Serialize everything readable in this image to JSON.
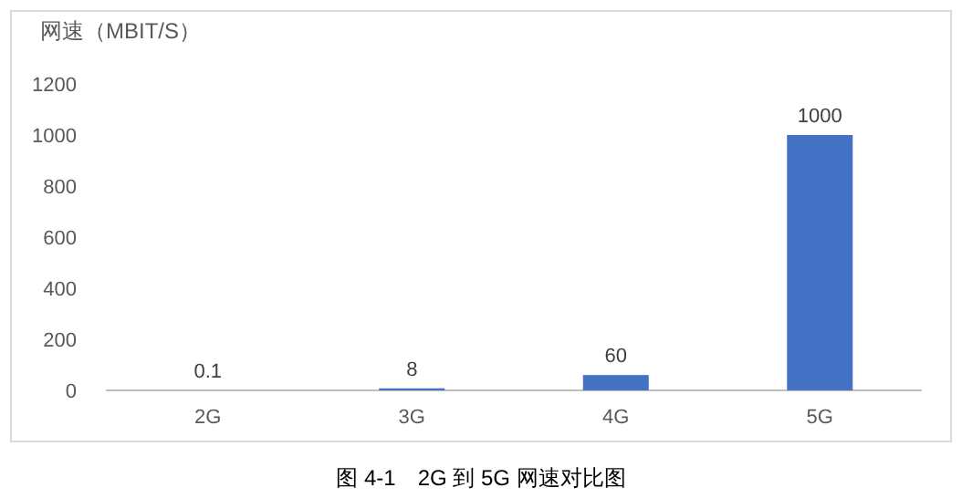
{
  "chart_data": {
    "type": "bar",
    "ylabel": "网速（MBIT/S）",
    "categories": [
      "2G",
      "3G",
      "4G",
      "5G"
    ],
    "values": [
      0.1,
      8,
      60,
      1000
    ],
    "color": "#4472c4",
    "ylim": [
      0,
      1200
    ],
    "yticks": [
      0,
      200,
      400,
      600,
      800,
      1000,
      1200
    ],
    "data_labels": true,
    "grid": false,
    "annotations": [
      "图 4-1　2G 到 5G 网速对比图"
    ]
  }
}
